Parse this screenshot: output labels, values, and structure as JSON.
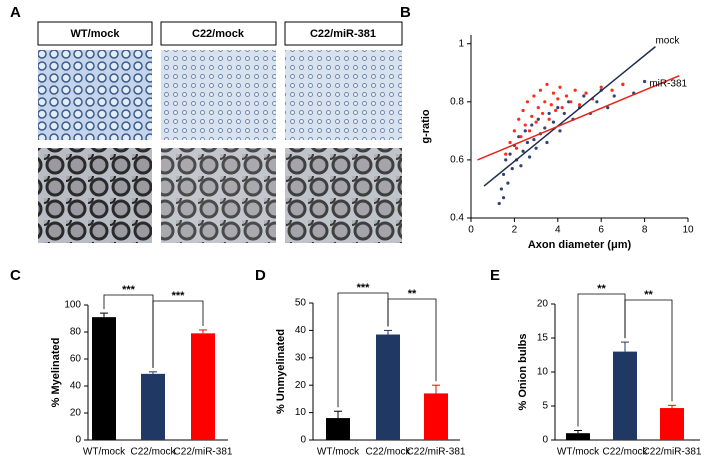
{
  "panel_a": {
    "panel": "A",
    "labels": [
      "WT/mock",
      "C22/mock",
      "C22/miR-381"
    ]
  },
  "chart_data": [
    {
      "type": "scatter",
      "panel": "B",
      "xlabel": "Axon diameter (μm)",
      "ylabel": "g-ratio",
      "xlim": [
        0,
        10
      ],
      "xticks": [
        0,
        2,
        4,
        6,
        8,
        10
      ],
      "ylim": [
        0.4,
        1.03
      ],
      "yticks": [
        0.4,
        0.6,
        0.8,
        1
      ],
      "series": [
        {
          "name": "mock",
          "color": "#2e4374",
          "x": [
            1.3,
            1.4,
            1.5,
            1.5,
            1.6,
            1.7,
            1.8,
            1.9,
            2.0,
            2.1,
            2.2,
            2.3,
            2.4,
            2.5,
            2.6,
            2.7,
            2.8,
            2.9,
            3.0,
            3.1,
            3.2,
            3.4,
            3.5,
            3.6,
            3.8,
            4.0,
            4.1,
            4.3,
            4.5,
            4.7,
            5.0,
            5.2,
            5.5,
            5.8,
            6.0,
            6.3,
            6.6,
            7.0,
            7.5,
            8.0
          ],
          "y": [
            0.45,
            0.5,
            0.55,
            0.47,
            0.6,
            0.52,
            0.62,
            0.57,
            0.65,
            0.6,
            0.68,
            0.58,
            0.63,
            0.7,
            0.66,
            0.61,
            0.72,
            0.67,
            0.64,
            0.74,
            0.69,
            0.71,
            0.66,
            0.76,
            0.73,
            0.78,
            0.7,
            0.76,
            0.8,
            0.74,
            0.78,
            0.82,
            0.76,
            0.8,
            0.84,
            0.78,
            0.82,
            0.86,
            0.83,
            0.87
          ],
          "fit": {
            "x": [
              0.6,
              8.5
            ],
            "y": [
              0.51,
              0.99
            ]
          }
        },
        {
          "name": "miR-381",
          "color": "#ff2a1a",
          "x": [
            1.6,
            1.8,
            2.0,
            2.1,
            2.2,
            2.3,
            2.4,
            2.5,
            2.6,
            2.7,
            2.8,
            2.9,
            3.0,
            3.1,
            3.2,
            3.3,
            3.4,
            3.5,
            3.6,
            3.7,
            3.8,
            3.9,
            4.0,
            4.1,
            4.2,
            4.4,
            4.6,
            4.8,
            5.0,
            5.3,
            5.6,
            6.0,
            6.5,
            7.0
          ],
          "y": [
            0.62,
            0.66,
            0.7,
            0.64,
            0.74,
            0.68,
            0.77,
            0.72,
            0.8,
            0.7,
            0.75,
            0.82,
            0.73,
            0.78,
            0.84,
            0.76,
            0.8,
            0.86,
            0.74,
            0.79,
            0.83,
            0.77,
            0.81,
            0.85,
            0.78,
            0.82,
            0.8,
            0.84,
            0.79,
            0.83,
            0.81,
            0.85,
            0.84,
            0.86
          ],
          "fit": {
            "x": [
              0.3,
              9.6
            ],
            "y": [
              0.6,
              0.89
            ]
          }
        }
      ]
    },
    {
      "type": "bar",
      "panel": "C",
      "ylabel": "% Myelinated",
      "categories": [
        "WT/mock",
        "C22/mock",
        "C22/miR-381"
      ],
      "values": [
        91,
        49,
        79
      ],
      "errors": [
        3,
        1.5,
        2.5
      ],
      "colors": [
        "#000000",
        "#1f3864",
        "#ff0000"
      ],
      "ylim": [
        0,
        100
      ],
      "yticks": [
        0,
        20,
        40,
        60,
        80,
        100
      ],
      "annotations": [
        "***",
        "***"
      ]
    },
    {
      "type": "bar",
      "panel": "D",
      "ylabel": "% Unmyelinated",
      "categories": [
        "WT/mock",
        "C22/mock",
        "C22/miR-381"
      ],
      "values": [
        8,
        38.5,
        17
      ],
      "errors": [
        2.5,
        1.5,
        3
      ],
      "colors": [
        "#000000",
        "#1f3864",
        "#ff0000"
      ],
      "ylim": [
        0,
        50
      ],
      "yticks": [
        0,
        10,
        20,
        30,
        40,
        50
      ],
      "annotations": [
        "***",
        "**"
      ]
    },
    {
      "type": "bar",
      "panel": "E",
      "ylabel": "% Onion bulbs",
      "categories": [
        "WT/mock",
        "C22/mock",
        "C22/miR-381"
      ],
      "values": [
        1,
        13,
        4.7
      ],
      "errors": [
        0.4,
        1.4,
        0.4
      ],
      "colors": [
        "#000000",
        "#1f3864",
        "#ff0000"
      ],
      "ylim": [
        0,
        20
      ],
      "yticks": [
        0,
        5,
        10,
        15,
        20
      ],
      "annotations": [
        "**",
        "**"
      ]
    }
  ]
}
